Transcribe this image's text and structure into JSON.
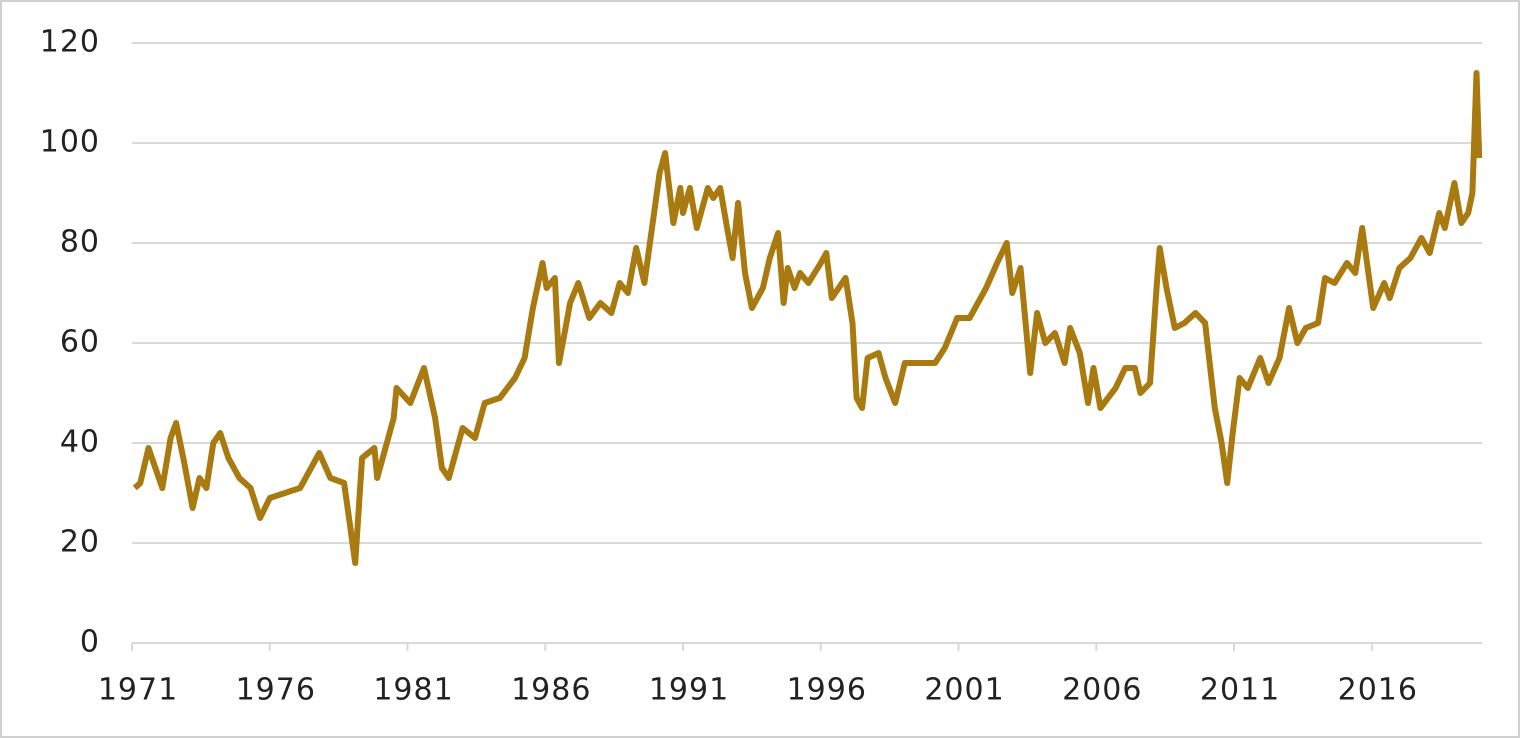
{
  "chart_data": {
    "type": "line",
    "x": [
      1971.1,
      1971.3,
      1971.6,
      1971.85,
      1972.1,
      1972.4,
      1972.6,
      1972.9,
      1973.2,
      1973.45,
      1973.7,
      1973.95,
      1974.2,
      1974.5,
      1974.9,
      1975.3,
      1975.65,
      1976,
      1977.1,
      1977.8,
      1978.2,
      1978.7,
      1978.9,
      1979.1,
      1979.35,
      1979.8,
      1979.9,
      1980.5,
      1980.6,
      1981.1,
      1981.6,
      1982,
      1982.25,
      1982.5,
      1983,
      1983.45,
      1983.8,
      1984.35,
      1984.9,
      1985.25,
      1985.55,
      1985.9,
      1986.05,
      1986.35,
      1986.5,
      1986.7,
      1986.9,
      1987.2,
      1987.6,
      1988,
      1988.4,
      1988.7,
      1989,
      1989.3,
      1989.6,
      1990.15,
      1990.35,
      1990.65,
      1990.9,
      1991,
      1991.25,
      1991.5,
      1991.9,
      1992.1,
      1992.35,
      1992.6,
      1992.8,
      1993,
      1993.25,
      1993.5,
      1993.9,
      1994.15,
      1994.45,
      1994.65,
      1994.8,
      1995.05,
      1995.25,
      1995.55,
      1996,
      1996.2,
      1996.4,
      1996.9,
      1997.15,
      1997.3,
      1997.5,
      1997.7,
      1998.1,
      1998.35,
      1998.7,
      1999.05,
      1999.5,
      2000.15,
      2000.5,
      2000.95,
      2001.4,
      2002,
      2002.4,
      2002.75,
      2002.95,
      2003.25,
      2003.6,
      2003.85,
      2004.15,
      2004.5,
      2004.85,
      2005.05,
      2005.4,
      2005.7,
      2005.9,
      2006.15,
      2006.7,
      2007.05,
      2007.4,
      2007.6,
      2007.95,
      2008.2,
      2008.3,
      2008.55,
      2008.85,
      2009.2,
      2009.6,
      2009.95,
      2010.3,
      2010.55,
      2010.75,
      2010.95,
      2011.2,
      2011.5,
      2011.95,
      2012.25,
      2012.65,
      2013,
      2013.3,
      2013.6,
      2014.05,
      2014.3,
      2014.65,
      2015.1,
      2015.4,
      2015.65,
      2016.05,
      2016.45,
      2016.65,
      2017,
      2017.4,
      2017.8,
      2018.1,
      2018.45,
      2018.65,
      2019,
      2019.25,
      2019.5,
      2019.65,
      2019.8,
      2019.9
    ],
    "series": [
      {
        "color": "#a87a10",
        "values": [
          31,
          32,
          39,
          35,
          31,
          41,
          44,
          36,
          27,
          33,
          31,
          40,
          42,
          37,
          33,
          31,
          25,
          29,
          31,
          38,
          33,
          32,
          24,
          16,
          37,
          39,
          33,
          45,
          51,
          48,
          55,
          45,
          35,
          33,
          43,
          41,
          48,
          49,
          53,
          57,
          67,
          76,
          71,
          73,
          56,
          62,
          68,
          72,
          65,
          68,
          66,
          72,
          70,
          79,
          72,
          94,
          98,
          84,
          91,
          86,
          91,
          83,
          91,
          89,
          91,
          83,
          77,
          88,
          74,
          67,
          71,
          77,
          82,
          68,
          75,
          71,
          74,
          72,
          76,
          78,
          69,
          73,
          64,
          49,
          47,
          57,
          58,
          53,
          48,
          56,
          56,
          56,
          59,
          65,
          65,
          71,
          76,
          80,
          70,
          75,
          54,
          66,
          60,
          62,
          56,
          63,
          58,
          48,
          55,
          47,
          51,
          55,
          55,
          50,
          52,
          72,
          79,
          71,
          63,
          64,
          66,
          64,
          47,
          40,
          32,
          42,
          53,
          51,
          57,
          52,
          57,
          67,
          60,
          63,
          64,
          73,
          72,
          76,
          74,
          83,
          67,
          72,
          69,
          75,
          77,
          81,
          78,
          86,
          83,
          92,
          84,
          86,
          90,
          114,
          97
        ]
      }
    ],
    "xlim": [
      1971,
      2020
    ],
    "xticks": [
      1971,
      1976,
      1981,
      1986,
      1991,
      1996,
      2001,
      2006,
      2011,
      2016
    ],
    "ylim": [
      0,
      120
    ],
    "yticks": [
      0,
      20,
      40,
      60,
      80,
      100,
      120
    ],
    "grid": true
  }
}
